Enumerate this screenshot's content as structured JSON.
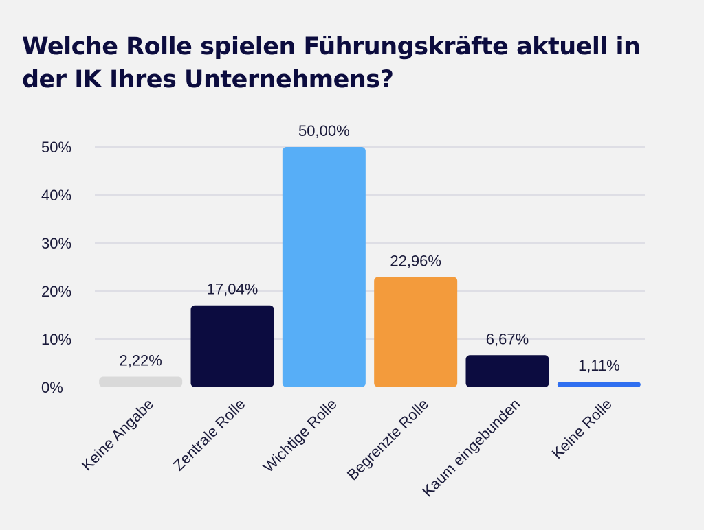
{
  "chart_data": {
    "type": "bar",
    "title": "Welche Rolle spielen Führungskräfte aktuell in der IK Ihres Unternehmens?",
    "categories": [
      "Keine Angabe",
      "Zentrale Rolle",
      "Wichtige Rolle",
      "Begrenzte Rolle",
      "Kaum eingebunden",
      "Keine Rolle"
    ],
    "values": [
      2.22,
      17.04,
      50.0,
      22.96,
      6.67,
      1.11
    ],
    "value_labels": [
      "2,22%",
      "17,04%",
      "50,00%",
      "22,96%",
      "6,67%",
      "1,11%"
    ],
    "colors": [
      "#d9d9d9",
      "#0c0c40",
      "#57aef7",
      "#f39b3c",
      "#0c0c40",
      "#2f6ff0"
    ],
    "ylim": [
      0,
      50
    ],
    "yticks": [
      0,
      10,
      20,
      30,
      40,
      50
    ],
    "ytick_labels": [
      "0%",
      "10%",
      "20%",
      "30%",
      "40%",
      "50%"
    ],
    "xlabel": "",
    "ylabel": "",
    "grid": true,
    "legend": "none"
  }
}
